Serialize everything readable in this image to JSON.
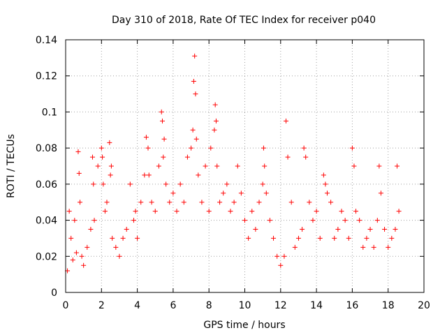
{
  "chart_data": {
    "type": "scatter",
    "title": "Day 310 of 2018, Rate Of TEC Index for receiver p040",
    "xlabel": "GPS time / hours",
    "ylabel": "ROTI / TECUs",
    "xlim": [
      0,
      20
    ],
    "ylim": [
      0,
      0.14
    ],
    "x_ticks": [
      0,
      2,
      4,
      6,
      8,
      10,
      12,
      14,
      16,
      18,
      20
    ],
    "y_ticks": [
      0,
      0.02,
      0.04,
      0.06,
      0.08,
      0.1,
      0.12,
      0.14
    ],
    "x_tick_labels": [
      "0",
      "2",
      "4",
      "6",
      "8",
      "10",
      "12",
      "14",
      "16",
      "18",
      "20"
    ],
    "y_tick_labels": [
      "0",
      "0.02",
      "0.04",
      "0.06",
      "0.08",
      "0.1",
      "0.12",
      "0.14"
    ],
    "grid": true,
    "marker": "plus",
    "color": "#ff0000",
    "series": [
      {
        "name": "ROTI",
        "x": [
          0.1,
          0.2,
          0.3,
          0.4,
          0.5,
          0.6,
          0.7,
          0.75,
          0.8,
          0.9,
          1.0,
          1.2,
          1.4,
          1.5,
          1.55,
          1.6,
          1.8,
          2.0,
          2.05,
          2.1,
          2.2,
          2.3,
          2.45,
          2.5,
          2.55,
          2.6,
          2.8,
          3.0,
          3.2,
          3.4,
          3.6,
          3.8,
          3.9,
          4.0,
          4.2,
          4.4,
          4.5,
          4.6,
          4.65,
          4.8,
          5.0,
          5.2,
          5.35,
          5.4,
          5.45,
          5.5,
          5.6,
          5.8,
          6.0,
          6.2,
          6.4,
          6.6,
          6.8,
          7.0,
          7.1,
          7.15,
          7.2,
          7.25,
          7.3,
          7.4,
          7.6,
          7.8,
          8.0,
          8.1,
          8.3,
          8.35,
          8.4,
          8.45,
          8.6,
          8.8,
          9.0,
          9.2,
          9.4,
          9.6,
          9.8,
          10.0,
          10.2,
          10.4,
          10.6,
          10.8,
          11.0,
          11.05,
          11.1,
          11.2,
          11.4,
          11.6,
          11.8,
          12.0,
          12.2,
          12.3,
          12.4,
          12.6,
          12.8,
          13.0,
          13.2,
          13.3,
          13.4,
          13.6,
          13.8,
          14.0,
          14.2,
          14.4,
          14.5,
          14.6,
          14.8,
          15.0,
          15.2,
          15.4,
          15.6,
          15.8,
          16.0,
          16.1,
          16.2,
          16.4,
          16.6,
          16.8,
          17.0,
          17.2,
          17.4,
          17.5,
          17.6,
          17.8,
          18.0,
          18.2,
          18.4,
          18.5,
          18.6
        ],
        "y": [
          0.012,
          0.045,
          0.03,
          0.018,
          0.04,
          0.022,
          0.078,
          0.066,
          0.05,
          0.02,
          0.015,
          0.025,
          0.035,
          0.075,
          0.06,
          0.04,
          0.07,
          0.08,
          0.075,
          0.06,
          0.045,
          0.05,
          0.083,
          0.065,
          0.07,
          0.03,
          0.025,
          0.02,
          0.03,
          0.035,
          0.06,
          0.04,
          0.045,
          0.03,
          0.05,
          0.065,
          0.086,
          0.08,
          0.065,
          0.05,
          0.045,
          0.07,
          0.1,
          0.095,
          0.075,
          0.085,
          0.06,
          0.05,
          0.055,
          0.045,
          0.06,
          0.05,
          0.075,
          0.08,
          0.09,
          0.117,
          0.131,
          0.11,
          0.085,
          0.065,
          0.05,
          0.07,
          0.045,
          0.08,
          0.09,
          0.104,
          0.095,
          0.07,
          0.05,
          0.055,
          0.06,
          0.045,
          0.05,
          0.07,
          0.055,
          0.04,
          0.03,
          0.045,
          0.035,
          0.05,
          0.06,
          0.08,
          0.07,
          0.055,
          0.04,
          0.03,
          0.02,
          0.015,
          0.02,
          0.095,
          0.075,
          0.05,
          0.025,
          0.03,
          0.035,
          0.08,
          0.075,
          0.05,
          0.04,
          0.045,
          0.03,
          0.065,
          0.06,
          0.055,
          0.05,
          0.03,
          0.035,
          0.045,
          0.04,
          0.03,
          0.08,
          0.07,
          0.045,
          0.04,
          0.025,
          0.03,
          0.035,
          0.025,
          0.04,
          0.07,
          0.055,
          0.035,
          0.025,
          0.03,
          0.035,
          0.07,
          0.045
        ]
      }
    ]
  }
}
